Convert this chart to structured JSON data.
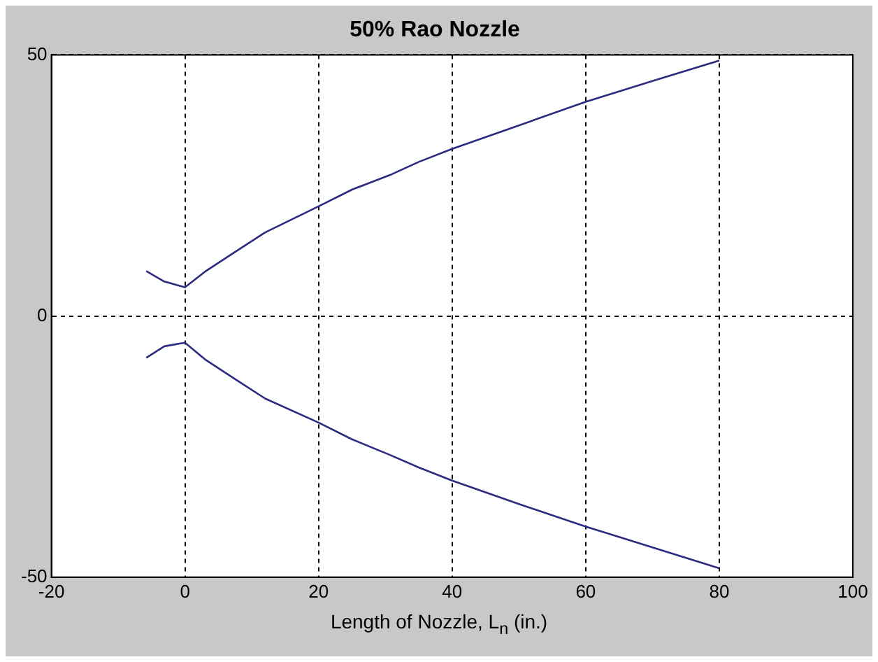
{
  "chart_data": {
    "type": "line",
    "title": "50% Rao Nozzle",
    "xlabel": "Length of Nozzle, L$_{n}$ (in.)",
    "xlim": [
      -20,
      100
    ],
    "xticks": [
      -20,
      0,
      20,
      40,
      60,
      80,
      100
    ],
    "ylim": [
      -50,
      50
    ],
    "yticks": [
      -50,
      0,
      50
    ],
    "grid": true,
    "legend": false,
    "marker": "none",
    "line_style": "solid",
    "series": [
      {
        "color": "#2b2b80",
        "x": [
          -5.8,
          -3.1,
          0,
          3,
          7.4,
          12,
          20,
          25,
          30.7,
          35,
          40,
          50,
          60,
          70,
          80
        ],
        "values": [
          8.6,
          6.6,
          5.5,
          8.5,
          12.2,
          16,
          21,
          24.2,
          27,
          29.5,
          32,
          36.5,
          41,
          45,
          48.9
        ]
      },
      {
        "color": "#2b2b80",
        "x": [
          -5.8,
          -3.1,
          0,
          3,
          7.4,
          12,
          20,
          25,
          30.7,
          35,
          40,
          50,
          60,
          70,
          80
        ],
        "values": [
          -8,
          -5.8,
          -5.1,
          -8.3,
          -12,
          -15.8,
          -20.4,
          -23.6,
          -26.6,
          -29,
          -31.5,
          -36,
          -40.3,
          -44.3,
          -48.3
        ]
      }
    ]
  }
}
